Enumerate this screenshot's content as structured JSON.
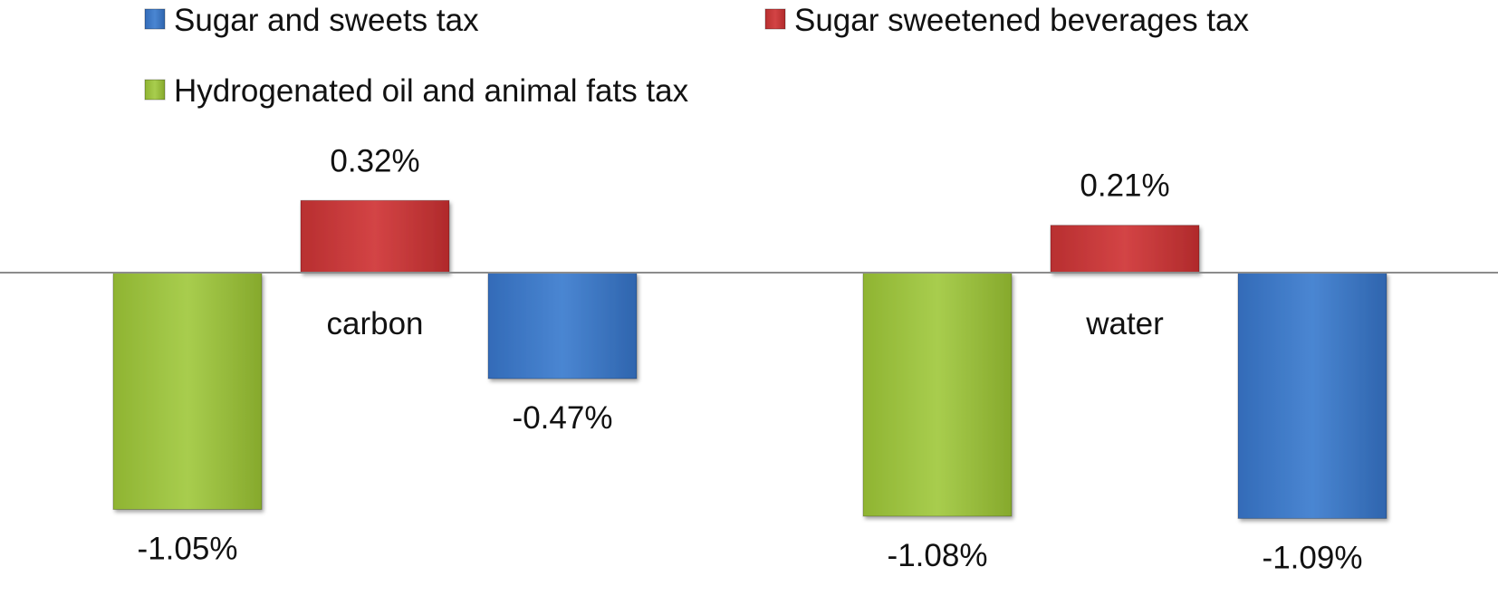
{
  "chart_data": {
    "type": "bar",
    "title": "",
    "xlabel": "",
    "ylabel": "",
    "categories": [
      "carbon",
      "water"
    ],
    "series": [
      {
        "name": "Hydrogenated oil and animal fats tax",
        "color": "#9dc340",
        "values": [
          -1.05,
          -1.08
        ],
        "labels": [
          "-1.05%",
          "-1.08%"
        ]
      },
      {
        "name": "Sugar sweetened beverages tax",
        "color": "#c9393a",
        "values": [
          0.32,
          0.21
        ],
        "labels": [
          "0.32%",
          "0.21%"
        ]
      },
      {
        "name": "Sugar and sweets tax",
        "color": "#3d78c6",
        "values": [
          -0.47,
          -1.09
        ],
        "labels": [
          "-0.47%",
          "-1.09%"
        ]
      }
    ],
    "legend": {
      "placement": "top",
      "order": [
        "Sugar and sweets tax",
        "Sugar sweetened beverages tax",
        "Hydrogenated oil and animal fats tax"
      ]
    },
    "ylim": [
      -1.25,
      0.4
    ],
    "unit": "%",
    "grid": false
  }
}
